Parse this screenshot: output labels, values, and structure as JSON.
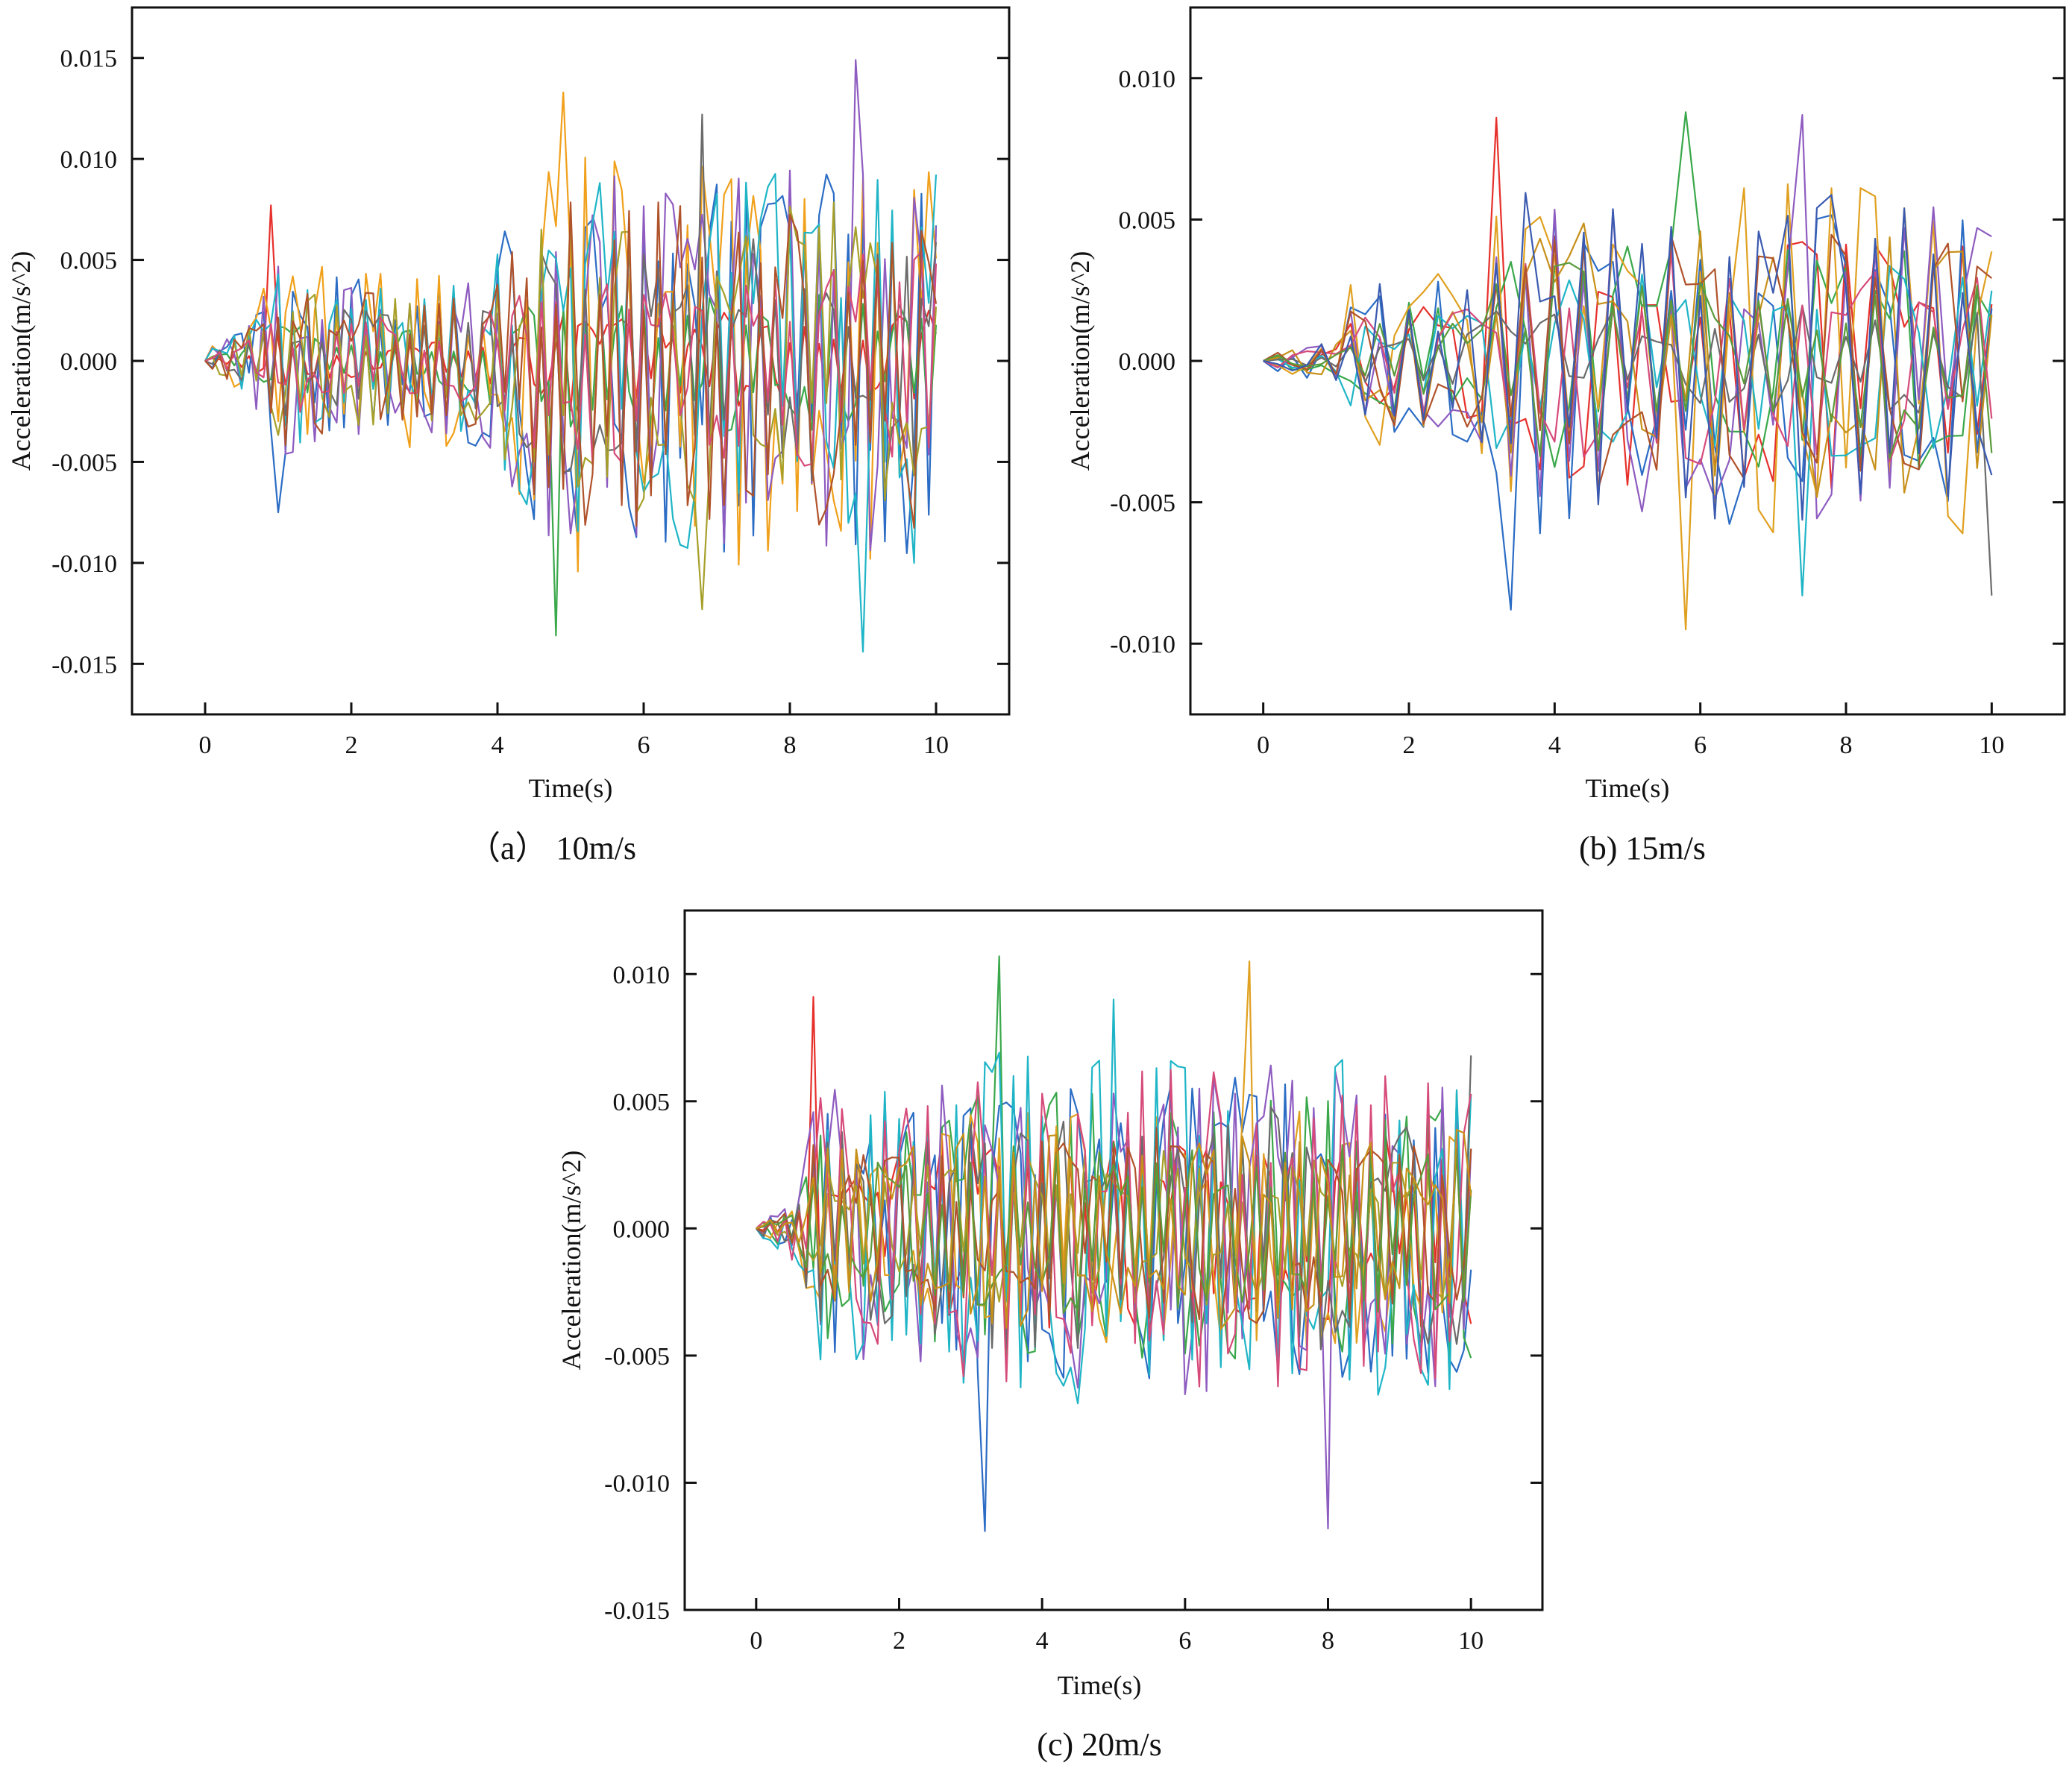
{
  "chart_data": [
    {
      "type": "line",
      "caption": "（a） 10m/s",
      "xlabel": "Time(s)",
      "ylabel": "Acceleration(m/s^2)",
      "xlim": [
        -1,
        11
      ],
      "ylim": [
        -0.0175,
        0.0175
      ],
      "xticks": [
        0,
        2,
        4,
        6,
        8,
        10
      ],
      "xtick_labels": [
        "0",
        "2",
        "4",
        "6",
        "8",
        "10"
      ],
      "yticks": [
        -0.015,
        -0.01,
        -0.005,
        0.0,
        0.005,
        0.01,
        0.015
      ],
      "ytick_labels": [
        "-0.015",
        "-0.010",
        "-0.005",
        "0.000",
        "0.005",
        "0.010",
        "0.015"
      ],
      "grid": false,
      "series_count": 10,
      "x_step": 0.1,
      "x_range": [
        0,
        10
      ],
      "envelope": [
        {
          "x": 0,
          "amp": 0.0005
        },
        {
          "x": 0.5,
          "amp": 0.0015
        },
        {
          "x": 1.0,
          "amp": 0.005
        },
        {
          "x": 2.0,
          "amp": 0.004
        },
        {
          "x": 3.5,
          "amp": 0.004
        },
        {
          "x": 4.5,
          "amp": 0.008
        },
        {
          "x": 5.0,
          "amp": 0.01
        },
        {
          "x": 6.0,
          "amp": 0.0095
        },
        {
          "x": 8.0,
          "amp": 0.0095
        },
        {
          "x": 10.0,
          "amp": 0.0105
        }
      ],
      "peaks": [
        {
          "x": 0.9,
          "y": 0.0077
        },
        {
          "x": 1.0,
          "y": -0.0075
        },
        {
          "x": 4.8,
          "y": -0.0136
        },
        {
          "x": 4.9,
          "y": 0.0133
        },
        {
          "x": 8.9,
          "y": 0.0149
        },
        {
          "x": 9.0,
          "y": -0.0144
        },
        {
          "x": 6.8,
          "y": 0.0122
        },
        {
          "x": 6.8,
          "y": -0.0123
        }
      ],
      "colors": [
        "#e6302b",
        "#2b6cc4",
        "#3aa84a",
        "#f0a01a",
        "#8e5cc0",
        "#1fb5c7",
        "#6b6b6b",
        "#a6a02a",
        "#d64a7a",
        "#b0522a"
      ]
    },
    {
      "type": "line",
      "caption": "(b) 15m/s",
      "xlabel": "Time(s)",
      "ylabel": "Acceleration(m/s^2)",
      "xlim": [
        -1,
        11
      ],
      "ylim": [
        -0.0125,
        0.0125
      ],
      "xticks": [
        0,
        2,
        4,
        6,
        8,
        10
      ],
      "xtick_labels": [
        "0",
        "2",
        "4",
        "6",
        "8",
        "10"
      ],
      "yticks": [
        -0.01,
        -0.005,
        0.0,
        0.005,
        0.01
      ],
      "ytick_labels": [
        "-0.010",
        "-0.005",
        "0.000",
        "0.005",
        "0.010"
      ],
      "grid": false,
      "series_count": 12,
      "x_step": 0.2,
      "x_range": [
        0,
        10
      ],
      "envelope": [
        {
          "x": 0,
          "amp": 0.0003
        },
        {
          "x": 1.0,
          "amp": 0.0008
        },
        {
          "x": 1.2,
          "amp": 0.003
        },
        {
          "x": 2.8,
          "amp": 0.003
        },
        {
          "x": 3.2,
          "amp": 0.006
        },
        {
          "x": 10.0,
          "amp": 0.006
        }
      ],
      "peaks": [
        {
          "x": 3.2,
          "y": 0.0086
        },
        {
          "x": 3.4,
          "y": -0.0088
        },
        {
          "x": 5.8,
          "y": 0.0088
        },
        {
          "x": 5.8,
          "y": -0.0095
        },
        {
          "x": 7.3,
          "y": 0.0087
        },
        {
          "x": 7.4,
          "y": -0.0083
        },
        {
          "x": 10.0,
          "y": -0.0083
        }
      ],
      "colors": [
        "#e6302b",
        "#2b6cc4",
        "#3aa84a",
        "#e0a020",
        "#8e5cc0",
        "#1fb5c7",
        "#6b6b6b",
        "#c7901a",
        "#d64a7a",
        "#b0522a",
        "#5a9a3a",
        "#3a5ab0"
      ]
    },
    {
      "type": "line",
      "caption": "(c) 20m/s",
      "xlabel": "Time(s)",
      "ylabel": "Acceleration(m/s^2)",
      "xlim": [
        -1,
        11
      ],
      "ylim": [
        -0.015,
        0.0125
      ],
      "xticks": [
        0,
        2,
        4,
        6,
        8,
        10
      ],
      "xtick_labels": [
        "0",
        "2",
        "4",
        "6",
        "8",
        "10"
      ],
      "yticks": [
        -0.015,
        -0.01,
        -0.005,
        0.0,
        0.005,
        0.01
      ],
      "ytick_labels": [
        "-0.015",
        "-0.010",
        "-0.005",
        "0.000",
        "0.005",
        "0.010"
      ],
      "grid": false,
      "series_count": 12,
      "x_step": 0.1,
      "x_range": [
        0,
        10
      ],
      "envelope": [
        {
          "x": 0,
          "amp": 0.0003
        },
        {
          "x": 0.6,
          "amp": 0.0015
        },
        {
          "x": 0.8,
          "amp": 0.0055
        },
        {
          "x": 2.0,
          "amp": 0.005
        },
        {
          "x": 3.0,
          "amp": 0.0065
        },
        {
          "x": 10.0,
          "amp": 0.0065
        }
      ],
      "peaks": [
        {
          "x": 0.8,
          "y": 0.0091
        },
        {
          "x": 3.2,
          "y": -0.0119
        },
        {
          "x": 3.4,
          "y": 0.0107
        },
        {
          "x": 6.9,
          "y": 0.0105
        },
        {
          "x": 8.0,
          "y": -0.0118
        },
        {
          "x": 5.0,
          "y": 0.009
        },
        {
          "x": 10.0,
          "y": 0.0068
        }
      ],
      "colors": [
        "#e6302b",
        "#2b6cc4",
        "#3aa84a",
        "#e0a020",
        "#8e5cc0",
        "#1fb5c7",
        "#6b6b6b",
        "#a6a02a",
        "#d64a7a",
        "#b0522a",
        "#5a9a3a",
        "#c7901a"
      ]
    }
  ]
}
